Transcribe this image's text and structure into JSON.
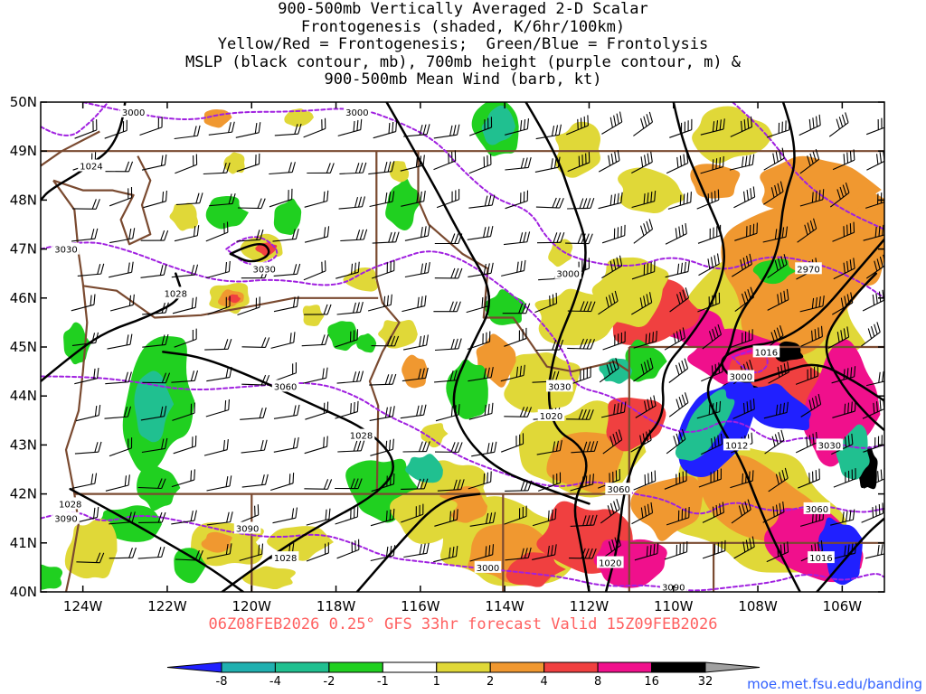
{
  "title_lines": [
    "900-500mb Vertically Averaged 2-D Scalar",
    "Frontogenesis (shaded, K/6hr/100km)",
    "Yellow/Red = Frontogenesis;  Green/Blue = Frontolysis",
    "MSLP (black contour, mb), 700mb height (purple contour, m) &",
    "900-500mb Mean Wind (barb, kt)"
  ],
  "valid_line": "06Z08FEB2026 0.25° GFS 33hr forecast Valid 15Z09FEB2026",
  "credit": "moe.met.fsu.edu/banding",
  "map": {
    "lon_range": [
      -125,
      -105
    ],
    "lat_range": [
      40,
      50
    ],
    "lat_ticks": [
      "40N",
      "41N",
      "42N",
      "43N",
      "44N",
      "45N",
      "46N",
      "47N",
      "48N",
      "49N",
      "50N"
    ],
    "lon_ticks": [
      "124W",
      "122W",
      "120W",
      "118W",
      "116W",
      "114W",
      "112W",
      "110W",
      "108W",
      "106W"
    ],
    "lon_tick_values": [
      -124,
      -122,
      -120,
      -118,
      -116,
      -114,
      -112,
      -110,
      -108,
      -106
    ],
    "lat_tick_values": [
      40,
      41,
      42,
      43,
      44,
      45,
      46,
      47,
      48,
      49,
      50
    ],
    "mslp_labels": [
      {
        "text": "1024",
        "lon": -123.8,
        "lat": 48.7
      },
      {
        "text": "1028",
        "lon": -121.8,
        "lat": 46.1
      },
      {
        "text": "1028",
        "lon": -117.4,
        "lat": 43.2
      },
      {
        "text": "1028",
        "lon": -119.2,
        "lat": 40.7
      },
      {
        "text": "1028",
        "lon": -124.3,
        "lat": 41.8
      },
      {
        "text": "1020",
        "lon": -112.9,
        "lat": 43.6
      },
      {
        "text": "1020",
        "lon": -111.5,
        "lat": 40.6
      },
      {
        "text": "1016",
        "lon": -107.8,
        "lat": 44.9
      },
      {
        "text": "1016",
        "lon": -106.5,
        "lat": 40.7
      },
      {
        "text": "1012",
        "lon": -108.5,
        "lat": 43.0
      }
    ],
    "height_labels": [
      {
        "text": "3000",
        "lon": -122.8,
        "lat": 49.8
      },
      {
        "text": "3000",
        "lon": -117.5,
        "lat": 49.8
      },
      {
        "text": "3030",
        "lon": -124.4,
        "lat": 47.0
      },
      {
        "text": "3030",
        "lon": -119.7,
        "lat": 46.6
      },
      {
        "text": "3000",
        "lon": -112.5,
        "lat": 46.5
      },
      {
        "text": "2970",
        "lon": -106.8,
        "lat": 46.6
      },
      {
        "text": "3060",
        "lon": -119.2,
        "lat": 44.2
      },
      {
        "text": "3030",
        "lon": -112.7,
        "lat": 44.2
      },
      {
        "text": "3000",
        "lon": -108.4,
        "lat": 44.4
      },
      {
        "text": "3030",
        "lon": -106.3,
        "lat": 43.0
      },
      {
        "text": "3060",
        "lon": -111.3,
        "lat": 42.1
      },
      {
        "text": "3060",
        "lon": -106.6,
        "lat": 41.7
      },
      {
        "text": "3090",
        "lon": -124.4,
        "lat": 41.5
      },
      {
        "text": "3090",
        "lon": -120.1,
        "lat": 41.3
      },
      {
        "text": "3090",
        "lon": -110.0,
        "lat": 40.1
      },
      {
        "text": "3000",
        "lon": -114.4,
        "lat": 40.5
      }
    ],
    "colors": {
      "frontolysis_strong": "#2020ff",
      "frontolysis_mid": "#20c090",
      "frontolysis_weak": "#20d020",
      "neutral": "#ffffff",
      "frontogenesis_weak": "#e0d838",
      "frontogenesis_mid": "#f09830",
      "frontogenesis_strong": "#f04040",
      "frontogenesis_vstrong": "#f0108c",
      "frontogenesis_extreme": "#000000",
      "mslp_contour": "#000000",
      "height_contour": "#a020e0",
      "state_border": "#7a4a30"
    }
  },
  "colorbar": {
    "labels": [
      "-8",
      "-4",
      "-2",
      "-1",
      "1",
      "2",
      "4",
      "8",
      "16",
      "32"
    ],
    "colors": [
      "#2020ff",
      "#20b0b0",
      "#20c090",
      "#20d020",
      "#ffffff",
      "#e0d838",
      "#f09830",
      "#f04040",
      "#f0108c",
      "#000000",
      "#a0a0a0"
    ]
  }
}
